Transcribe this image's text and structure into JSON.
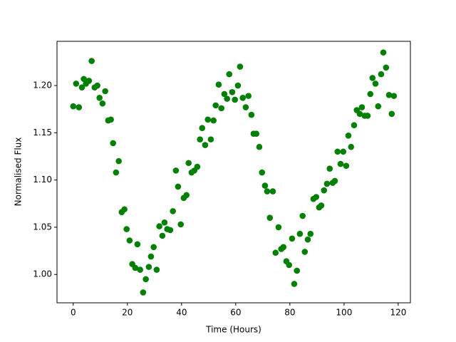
{
  "chart_data": {
    "type": "scatter",
    "xlabel": "Time (Hours)",
    "ylabel": "Normalised Flux",
    "color": "#008000",
    "xlim": [
      -6,
      124.5
    ],
    "ylim": [
      0.97,
      1.2468
    ],
    "xticks": [
      0,
      20,
      40,
      60,
      80,
      100,
      120
    ],
    "yticks": [
      {
        "value": 1,
        "label": "1.00"
      },
      1.05,
      {
        "value": 1.1,
        "label": "1.10"
      },
      1.15,
      {
        "value": 1.2,
        "label": "1.20"
      }
    ],
    "x": [
      0,
      1.05,
      2.1,
      3.2,
      3.9,
      4.7,
      5.8,
      6.8,
      7.9,
      8.9,
      9.7,
      10.8,
      11.8,
      12.9,
      13.9,
      14.7,
      15.8,
      16.8,
      17.9,
      18.9,
      19.7,
      20.8,
      21.8,
      22.9,
      23.7,
      24.7,
      25.8,
      26.8,
      27.9,
      28.7,
      29.7,
      30.8,
      31.8,
      32.9,
      33.7,
      34.7,
      35.8,
      36.8,
      37.9,
      38.7,
      39.7,
      40.8,
      41.8,
      42.6,
      43.7,
      44.7,
      45.8,
      46.8,
      47.6,
      48.7,
      49.7,
      50.8,
      51.8,
      52.6,
      53.7,
      54.7,
      55.8,
      56.8,
      57.6,
      58.7,
      59.7,
      60.8,
      61.6,
      62.6,
      63.7,
      64.7,
      65.8,
      66.6,
      67.6,
      68.7,
      69.7,
      70.8,
      71.6,
      72.6,
      73.7,
      74.7,
      75.8,
      76.8,
      77.6,
      78.7,
      79.7,
      80.8,
      81.6,
      82.6,
      83.7,
      84.7,
      85.5,
      86.6,
      87.6,
      88.7,
      89.7,
      90.8,
      91.6,
      92.6,
      93.7,
      94.7,
      95.8,
      96.6,
      97.6,
      98.7,
      99.7,
      100.8,
      101.6,
      102.6,
      103.7,
      104.7,
      105.8,
      106.6,
      107.6,
      108.7,
      109.7,
      110.5,
      111.6,
      112.6,
      113.7,
      114.5,
      115.5,
      116.6,
      117.6,
      118.4
    ],
    "values": [
      1.178,
      1.202,
      1.177,
      1.198,
      1.207,
      1.202,
      1.205,
      1.226,
      1.198,
      1.2,
      1.187,
      1.181,
      1.194,
      1.163,
      1.164,
      1.139,
      1.108,
      1.12,
      1.066,
      1.069,
      1.048,
      1.036,
      1.011,
      1.007,
      1.032,
      1.005,
      0.981,
      0.995,
      1.008,
      1.019,
      1.029,
      1.005,
      1.051,
      1.041,
      1.055,
      1.048,
      1.047,
      1.067,
      1.11,
      1.093,
      1.053,
      1.081,
      1.084,
      1.118,
      1.108,
      1.11,
      1.114,
      1.143,
      1.155,
      1.137,
      1.164,
      1.143,
      1.163,
      1.179,
      1.201,
      1.176,
      1.191,
      1.186,
      1.212,
      1.193,
      1.185,
      1.2,
      1.22,
      1.187,
      1.177,
      1.189,
      1.169,
      1.149,
      1.149,
      1.135,
      1.108,
      1.094,
      1.088,
      1.06,
      1.088,
      1.023,
      1.05,
      1.027,
      1.029,
      1.014,
      1.01,
      1.038,
      0.99,
      1.004,
      1.043,
      1.062,
      1.024,
      1.037,
      1.043,
      1.08,
      1.082,
      1.071,
      1.073,
      1.089,
      1.096,
      1.112,
      1.097,
      1.099,
      1.13,
      1.117,
      1.13,
      1.115,
      1.147,
      1.135,
      1.158,
      1.174,
      1.17,
      1.177,
      1.168,
      1.168,
      1.191,
      1.208,
      1.202,
      1.178,
      1.212,
      1.235,
      1.219,
      1.19,
      1.17,
      1.189
    ]
  }
}
